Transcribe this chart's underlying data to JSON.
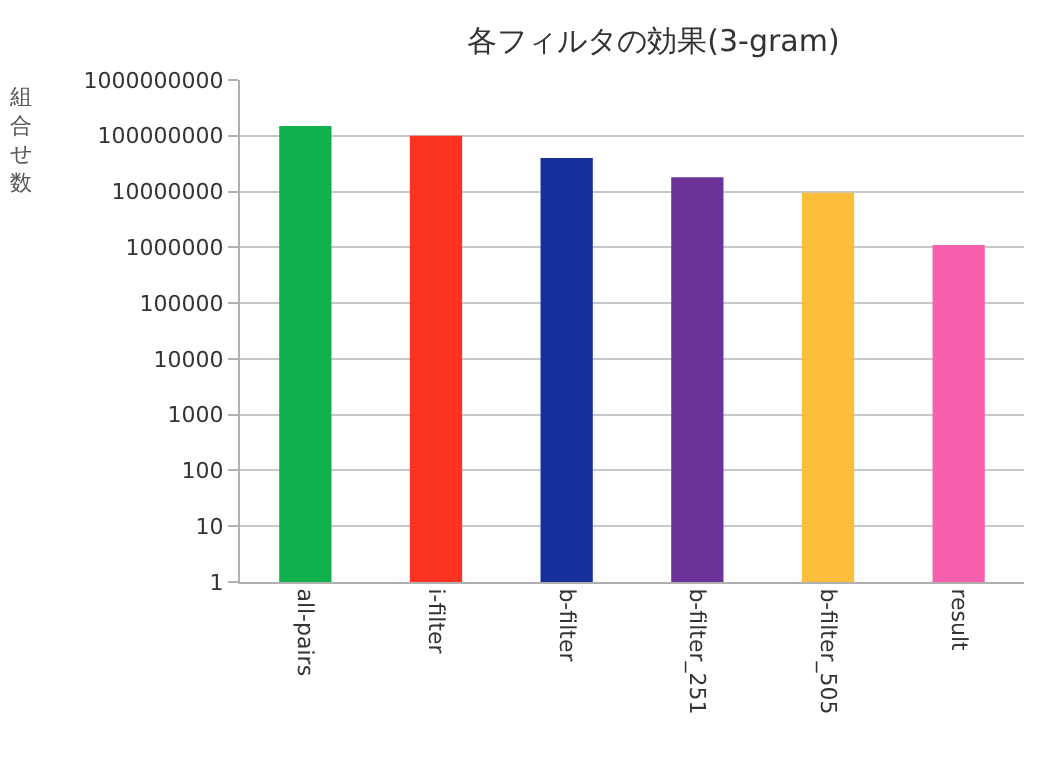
{
  "chart_data": {
    "type": "bar",
    "title": "各フィルタの効果(3-gram)",
    "ylabel": "組合せ数",
    "categories": [
      "all-pairs",
      "i-filter",
      "b-filter",
      "b-filter_251",
      "b-filter_505",
      "result"
    ],
    "values": [
      150000000,
      100000000,
      40000000,
      18000000,
      9500000,
      1100000
    ],
    "colors": [
      "#12b04c",
      "#fc3320",
      "#15309a",
      "#6b3298",
      "#fdbe3c",
      "#f85fad"
    ],
    "log": true,
    "ylim": [
      1,
      1000000000
    ],
    "yticks": [
      1,
      10,
      100,
      1000,
      10000,
      100000,
      1000000,
      10000000,
      100000000,
      1000000000
    ],
    "grid": "y"
  }
}
